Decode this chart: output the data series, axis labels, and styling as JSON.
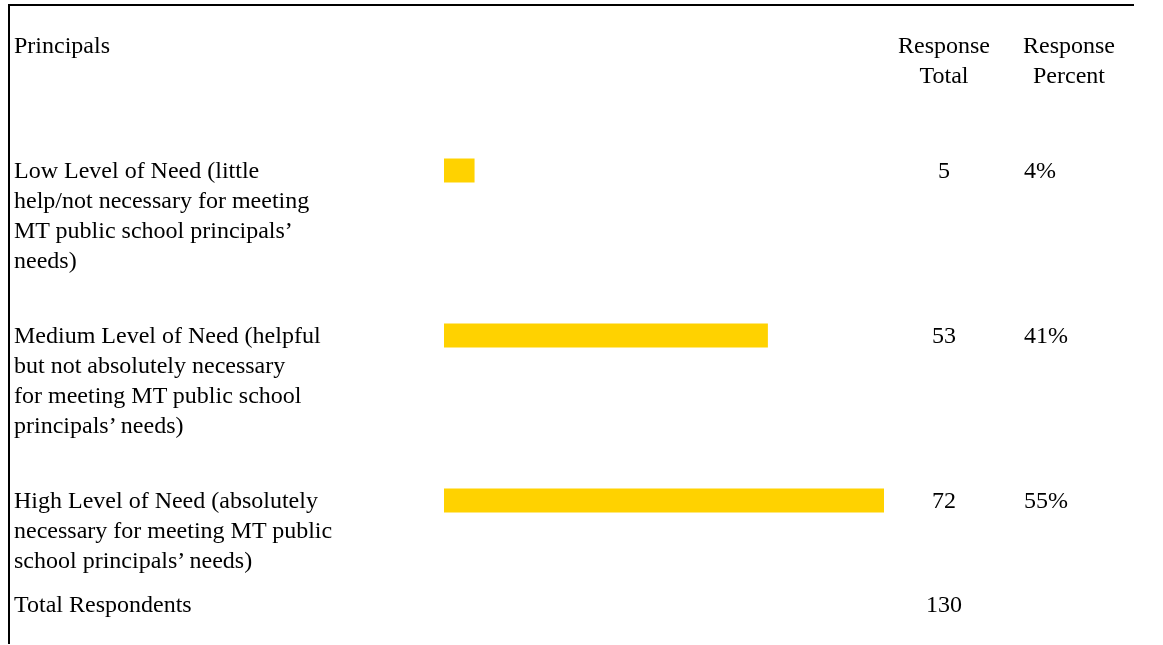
{
  "chart_data": {
    "type": "bar",
    "orientation": "horizontal",
    "ylabel": "Principals",
    "categories": [
      "Low Level of Need (little help/not necessary for meeting MT public school principals’ needs)",
      "Medium Level of Need (helpful but not absolutely necessary for meeting MT public school principals’ needs)",
      "High Level of Need (absolutely necessary for meeting MT public school principals’ needs)"
    ],
    "values": [
      5,
      53,
      72
    ],
    "color": "#ffd200",
    "data_labels": true,
    "annotations": [
      "Response Total",
      "Response Percent",
      "4%",
      "41%",
      "55%",
      "Total Respondents",
      "130"
    ]
  }
}
